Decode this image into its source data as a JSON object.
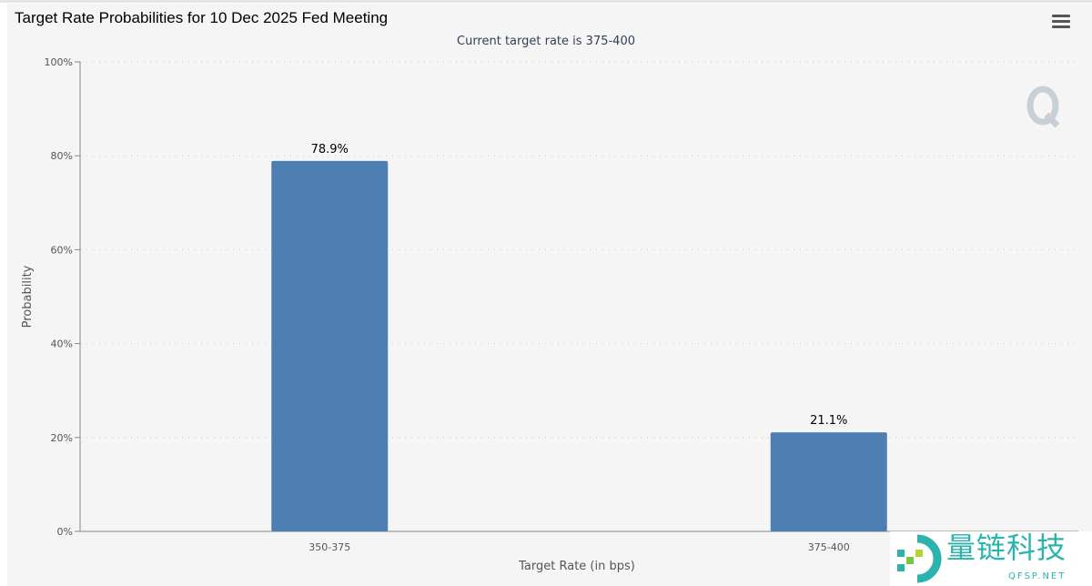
{
  "title": "Target Rate Probabilities for 10 Dec 2025 Fed Meeting",
  "subtitle": "Current target rate is 375-400",
  "menu_icon": "hamburger-menu-icon",
  "watermark": {
    "text_cn": "量链科技",
    "text_en": "QFSP.NET"
  },
  "chart_data": {
    "type": "bar",
    "title": "Target Rate Probabilities for 10 Dec 2025 Fed Meeting",
    "subtitle": "Current target rate is 375-400",
    "categories": [
      "350-375",
      "375-400"
    ],
    "values": [
      78.9,
      21.1
    ],
    "data_labels": [
      "78.9%",
      "21.1%"
    ],
    "xlabel": "Target Rate (in bps)",
    "ylabel": "Probability",
    "ylim": [
      0,
      100
    ],
    "yticks": [
      "0%",
      "20%",
      "40%",
      "60%",
      "80%",
      "100%"
    ],
    "grid": true,
    "bar_color": "#4e7fb2"
  }
}
